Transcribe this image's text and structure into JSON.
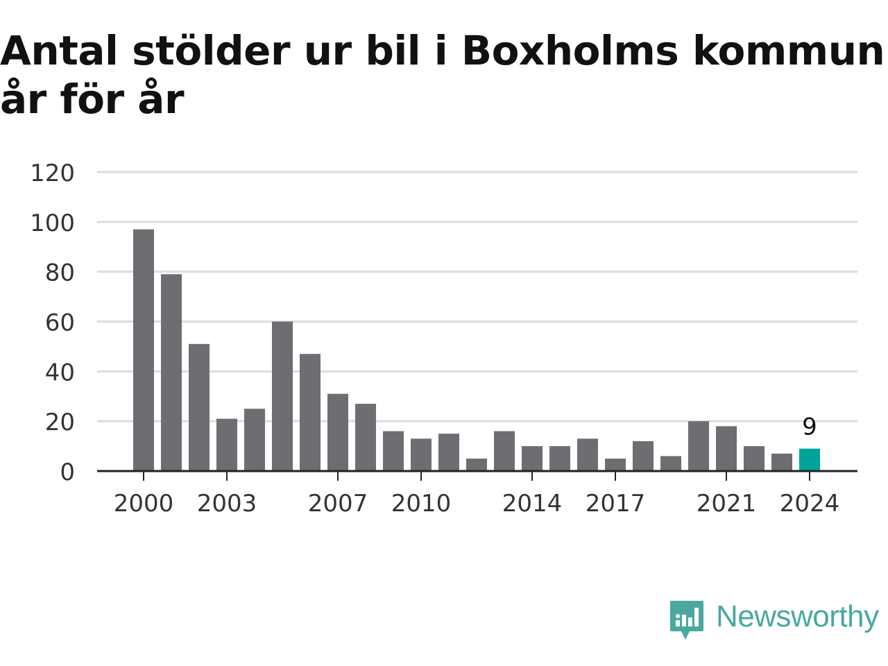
{
  "title": "Antal stölder ur bil i Boxholms kommun år för år",
  "brand": {
    "name": "Newsworthy",
    "icon": "newsworthy-logo-icon",
    "color": "#4aa8a0"
  },
  "colors": {
    "bar": "#6e6d72",
    "highlight": "#00a398",
    "grid": "#dcdcdc",
    "axis": "#222222",
    "text": "#333333"
  },
  "chart_data": {
    "type": "bar",
    "title": "Antal stölder ur bil i Boxholms kommun år för år",
    "xlabel": "",
    "ylabel": "",
    "categories": [
      "2000",
      "2001",
      "2002",
      "2003",
      "2004",
      "2005",
      "2006",
      "2007",
      "2008",
      "2009",
      "2010",
      "2011",
      "2012",
      "2013",
      "2014",
      "2015",
      "2016",
      "2017",
      "2018",
      "2019",
      "2020",
      "2021",
      "2022",
      "2023",
      "2024"
    ],
    "values": [
      97,
      79,
      51,
      21,
      25,
      60,
      47,
      31,
      27,
      16,
      13,
      15,
      5,
      16,
      10,
      10,
      13,
      5,
      12,
      6,
      20,
      18,
      10,
      7,
      9
    ],
    "ylim": [
      0,
      120
    ],
    "yticks": [
      0,
      20,
      40,
      60,
      80,
      100,
      120
    ],
    "xtick_labels": [
      "2000",
      "2003",
      "2007",
      "2010",
      "2014",
      "2017",
      "2021",
      "2024"
    ],
    "highlight": {
      "category": "2024",
      "label": "9"
    },
    "grid": true,
    "legend": "none"
  }
}
